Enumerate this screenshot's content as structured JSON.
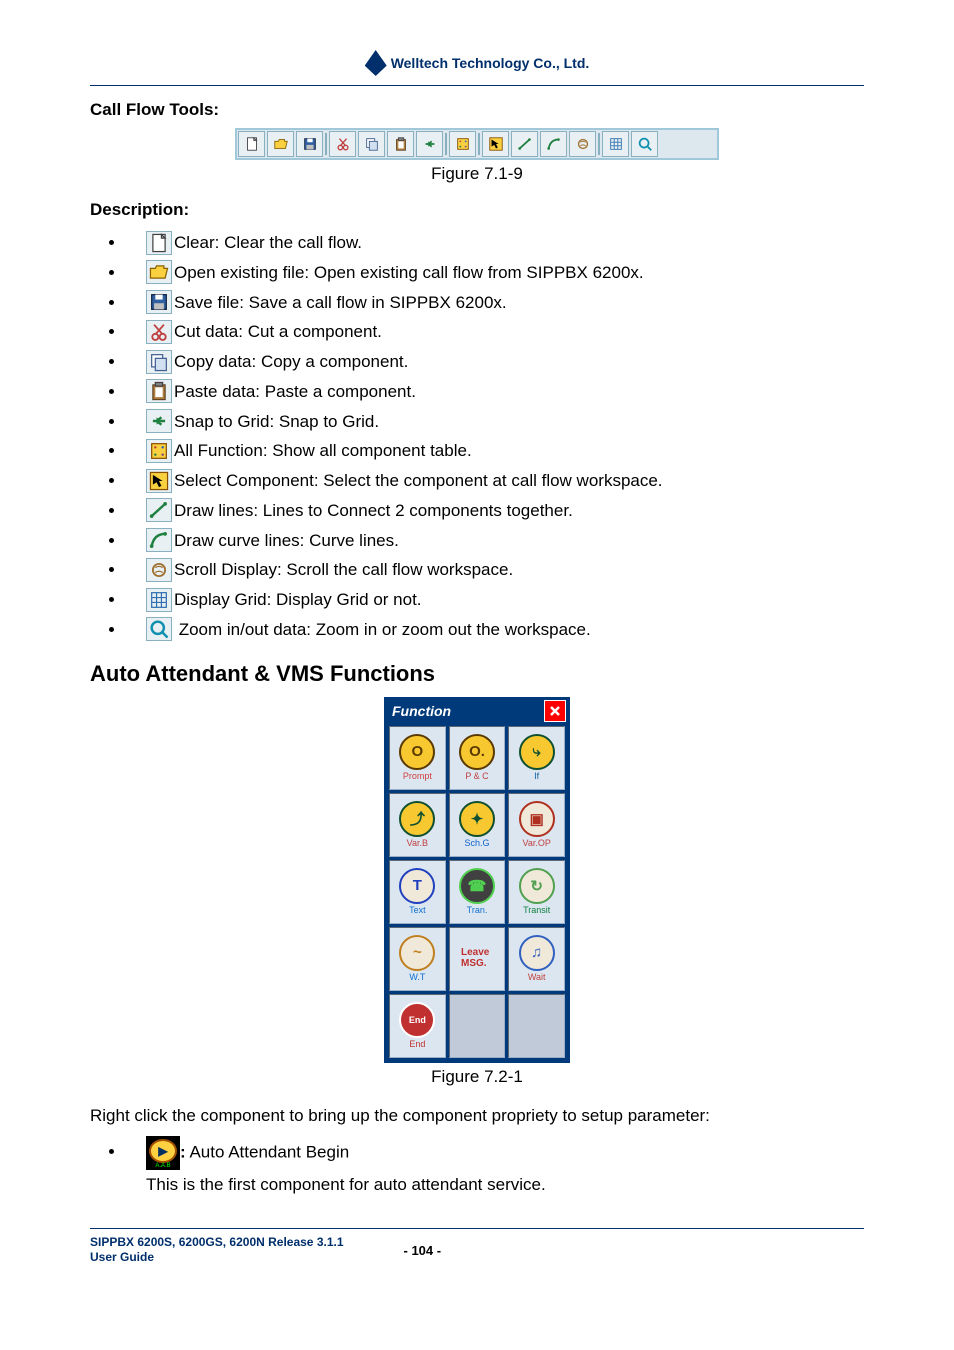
{
  "header": {
    "company": "Welltech Technology Co., Ltd."
  },
  "call_flow": {
    "heading": "Call Flow Tools:",
    "caption": "Figure 7.1-9",
    "toolbar_icons": [
      {
        "name": "new-icon",
        "type": "new"
      },
      {
        "name": "open-icon",
        "type": "open"
      },
      {
        "name": "save-icon",
        "type": "save"
      },
      {
        "sep": true
      },
      {
        "name": "cut-icon",
        "type": "cut"
      },
      {
        "name": "copy-icon",
        "type": "copy"
      },
      {
        "name": "paste-icon",
        "type": "paste"
      },
      {
        "name": "snap-icon",
        "type": "snap"
      },
      {
        "sep": true
      },
      {
        "name": "allfunc-icon",
        "type": "allfunc"
      },
      {
        "sep": true
      },
      {
        "name": "select-icon",
        "type": "select"
      },
      {
        "name": "line-icon",
        "type": "line"
      },
      {
        "name": "curve-icon",
        "type": "curve"
      },
      {
        "name": "scroll-icon",
        "type": "scroll"
      },
      {
        "sep": true
      },
      {
        "name": "grid-icon",
        "type": "grid"
      },
      {
        "name": "zoom-icon",
        "type": "zoom"
      }
    ]
  },
  "description": {
    "heading": "Description:",
    "items": [
      {
        "icon": "new",
        "text": "Clear: Clear the call flow."
      },
      {
        "icon": "open",
        "text": "Open existing file: Open existing call flow from SIPPBX 6200x."
      },
      {
        "icon": "save",
        "text": "Save file: Save a call flow in SIPPBX 6200x."
      },
      {
        "icon": "cut",
        "text": "Cut data: Cut a component."
      },
      {
        "icon": "copy",
        "text": "Copy data: Copy a component."
      },
      {
        "icon": "paste",
        "text": "Paste data: Paste a component."
      },
      {
        "icon": "snap",
        "text": "Snap to Grid: Snap to Grid."
      },
      {
        "icon": "allfunc",
        "text": "All Function: Show all component table."
      },
      {
        "icon": "select",
        "text": "Select Component: Select the component at call flow workspace."
      },
      {
        "icon": "line",
        "text": "Draw lines: Lines to Connect 2 components together."
      },
      {
        "icon": "curve",
        "text": "Draw curve lines: Curve lines."
      },
      {
        "icon": "scroll",
        "text": "Scroll Display: Scroll the call flow workspace."
      },
      {
        "icon": "grid",
        "text": "Display Grid: Display Grid or not."
      },
      {
        "icon": "zoom",
        "text": " Zoom in/out data: Zoom in or zoom out the workspace."
      }
    ]
  },
  "section2": {
    "heading": "Auto Attendant & VMS Functions",
    "palette_title": "Function",
    "cells": [
      {
        "label": "Prompt",
        "icon_bg": "#f8c830",
        "fg": "#5a3a00",
        "glyph": "O",
        "label_color": "#d04040"
      },
      {
        "label": "P & C",
        "icon_bg": "#f8c830",
        "fg": "#5a3a00",
        "glyph": "O.",
        "label_color": "#c04040"
      },
      {
        "label": "If",
        "icon_bg": "#f8c830",
        "fg": "#105030",
        "glyph": "⤷",
        "label_color": "#1060a0"
      },
      {
        "label": "Var.B",
        "icon_bg": "#f8c830",
        "fg": "#105030",
        "glyph": "⤴",
        "label_color": "#c04040"
      },
      {
        "label": "Sch.G",
        "icon_bg": "#f8c830",
        "fg": "#105030",
        "glyph": "✦",
        "label_color": "#1060d0"
      },
      {
        "label": "Var.OP",
        "icon_bg": "#f0e8d8",
        "fg": "#b03020",
        "glyph": "▣",
        "label_color": "#c04040"
      },
      {
        "label": "Text",
        "icon_bg": "#f0e8d8",
        "fg": "#2040c0",
        "glyph": "T",
        "label_color": "#1070d0"
      },
      {
        "label": "Tran.",
        "icon_bg": "#404040",
        "fg": "#50d050",
        "glyph": "☎",
        "label_color": "#1070d0"
      },
      {
        "label": "Transit",
        "icon_bg": "#f0e8d8",
        "fg": "#50a050",
        "glyph": "↻",
        "label_color": "#108040"
      },
      {
        "label": "W.T",
        "icon_bg": "#f0e8d8",
        "fg": "#c08020",
        "glyph": "~",
        "label_color": "#1070d0"
      },
      {
        "label": "Leave MSG.",
        "icon_bg": "#f0e8d8",
        "fg": "#c03030",
        "glyph": "✉",
        "label_color": "#c03030",
        "no_circle": true
      },
      {
        "label": "Wait",
        "icon_bg": "#f0e8d8",
        "fg": "#3060c0",
        "glyph": "♫",
        "label_color": "#c04040"
      },
      {
        "label": "End",
        "icon_bg": "#c03030",
        "fg": "#ffffff",
        "glyph": "End",
        "label_color": "#c03030",
        "small": true
      },
      {
        "empty": true
      },
      {
        "empty": true
      }
    ],
    "caption": "Figure 7.2-1",
    "after_text": "Right click the component to bring up the component propriety to setup parameter:",
    "begin_label": "A.A.B",
    "begin_bold": ":",
    "begin_text": " Auto Attendant Begin",
    "begin_desc": "This is the first component for auto attendant service."
  },
  "footer": {
    "line1": "SIPPBX 6200S, 6200GS, 6200N Release 3.1.1",
    "line2": "User Guide",
    "page": "- 104 -"
  }
}
